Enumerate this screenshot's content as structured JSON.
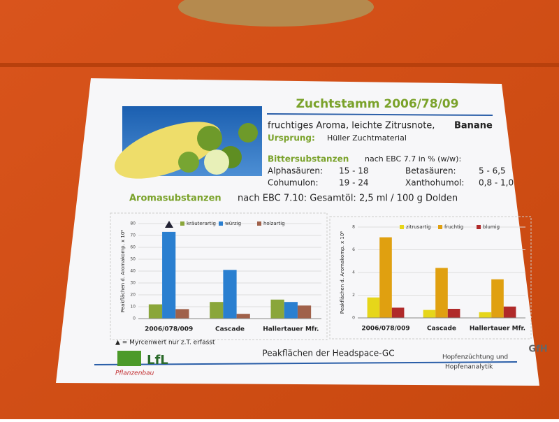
{
  "sign": {
    "title": "Zuchtstamm 2006/78/09",
    "aroma_line": "fruchtiges Aroma, leichte Zitrusnote,",
    "aroma_bold": "Banane",
    "origin_label": "Ursprung:",
    "origin": "Hüller Zuchtmaterial",
    "bitter_label": "Bittersubstanzen",
    "bitter_method": "nach EBC 7.7 in % (w/w):",
    "bitter_rows": [
      [
        "Alphasäuren:",
        "15 - 18",
        "Betasäuren:",
        "5 - 6,5"
      ],
      [
        "Cohumulon:",
        "19 - 24",
        "Xanthohumol:",
        "0,8 - 1,0"
      ]
    ],
    "aroma_label": "Aromasubstanzen",
    "aroma_method": "nach EBC 7.10: Gesamtöl: 2,5 ml / 100 g Dolden",
    "footnote": "▲ = Myrcenwert nur z.T. erfasst",
    "footer": "Peakflächen der Headspace-GC",
    "logo": "LfL",
    "logo_sub": "Pflanzenbau",
    "partner_1": "Hopfenzüchtung und",
    "partner_2": "Hopfenanalytik",
    "partner_logo": "GfH"
  },
  "chart_data": [
    {
      "type": "bar",
      "y_label": "Peakflächen d. Aromakomp. x 10⁶",
      "categories": [
        "2006/078/009",
        "Cascade",
        "Hallertauer Mfr."
      ],
      "series": [
        {
          "name": "kräuterartig",
          "color": "#8aa63a",
          "values": [
            12,
            14,
            16
          ]
        },
        {
          "name": "würzig",
          "color": "#2a7fd0",
          "values": [
            73,
            41,
            14
          ]
        },
        {
          "name": "holzartig",
          "color": "#a0614a",
          "values": [
            8,
            4,
            11
          ]
        }
      ],
      "ylim": [
        0,
        80
      ],
      "yticks": [
        0,
        10,
        20,
        30,
        40,
        50,
        60,
        70,
        80
      ],
      "grid": true
    },
    {
      "type": "bar",
      "y_label": "Peakflächen d. Aromakomp. x 10⁶",
      "categories": [
        "2006/078/009",
        "Cascade",
        "Hallertauer Mfr."
      ],
      "series": [
        {
          "name": "zitrusartig",
          "color": "#e6d61a",
          "values": [
            1.8,
            0.7,
            0.5
          ]
        },
        {
          "name": "fruchtig",
          "color": "#e0a010",
          "values": [
            7.1,
            4.4,
            3.4
          ]
        },
        {
          "name": "blumig",
          "color": "#b02a2a",
          "values": [
            0.9,
            0.8,
            1.0
          ]
        }
      ],
      "ylim": [
        0,
        8
      ],
      "yticks": [
        0,
        2,
        4,
        6,
        8
      ],
      "grid": true
    }
  ]
}
